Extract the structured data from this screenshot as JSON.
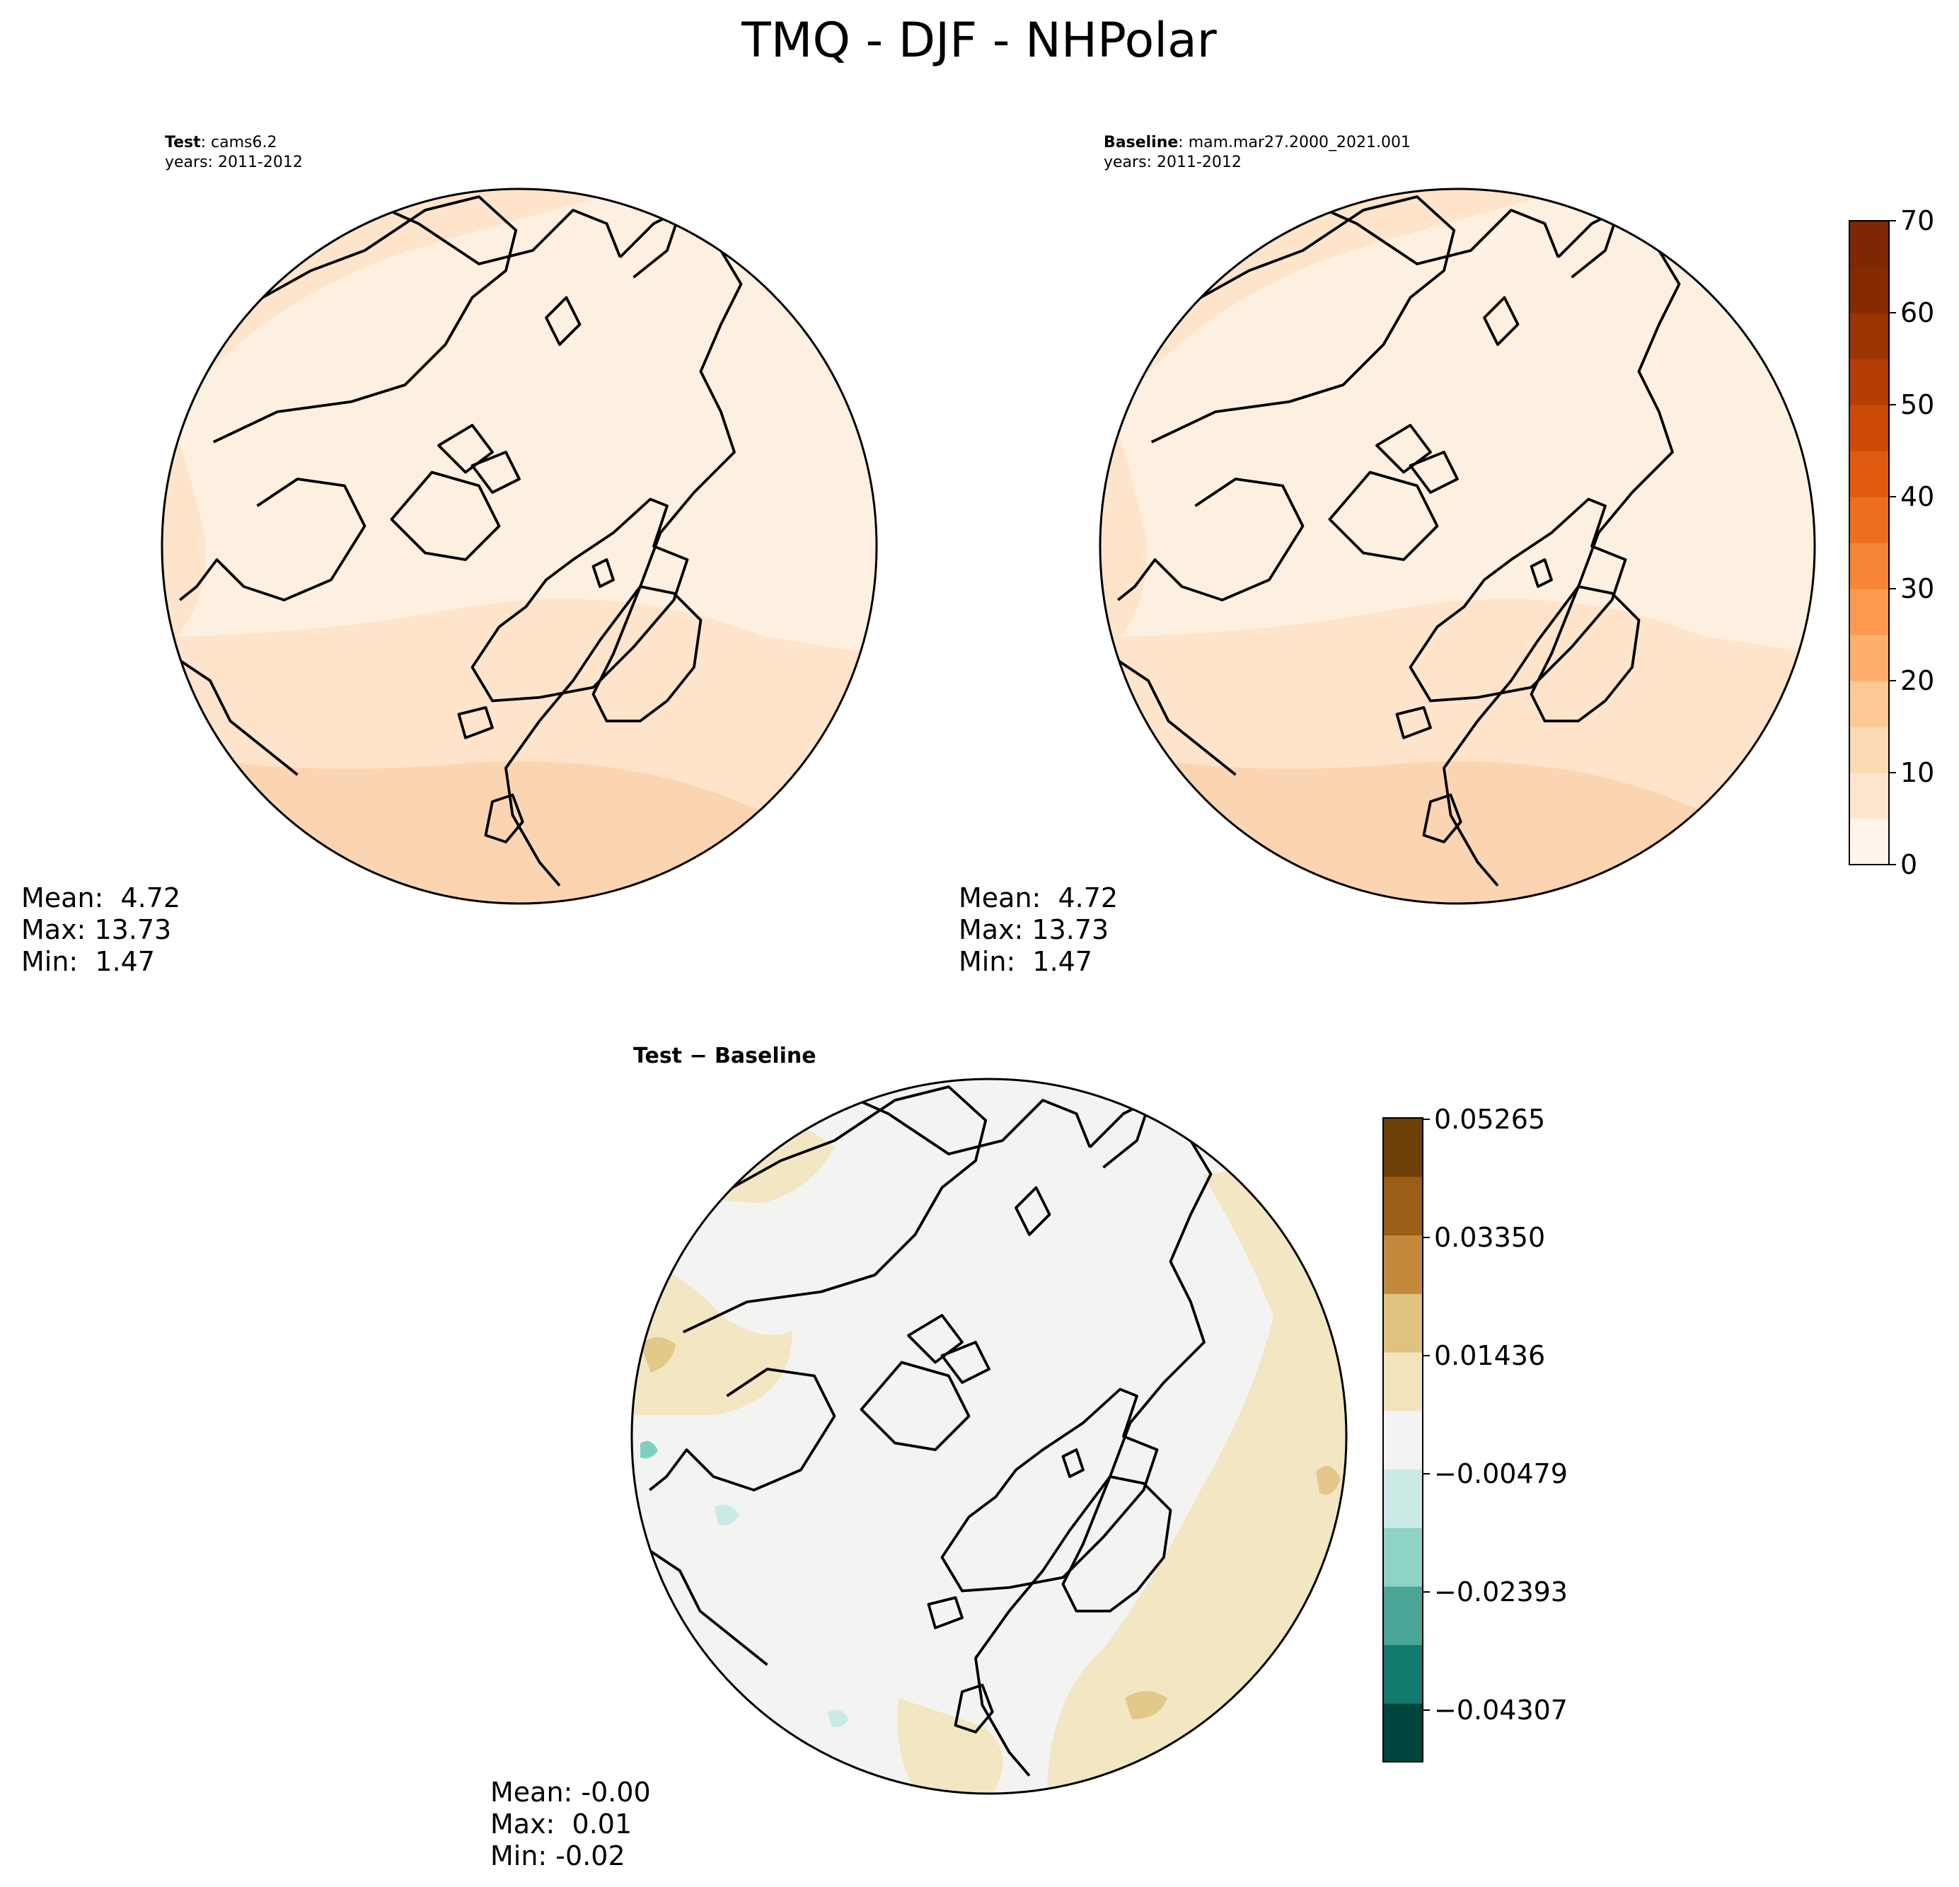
{
  "figure": {
    "title": "TMQ - DJF - NHPolar"
  },
  "panels": {
    "test": {
      "label_bold": "Test",
      "label_rest": ": cams6.2",
      "years": "years: 2011-2012",
      "stats": {
        "mean": "Mean:  4.72",
        "max": "Max: 13.73",
        "min": "Min:  1.47"
      }
    },
    "baseline": {
      "label_bold": "Baseline",
      "label_rest": ": mam.mar27.2000_2021.001",
      "years": "years: 2011-2012",
      "stats": {
        "mean": "Mean:  4.72",
        "max": "Max: 13.73",
        "min": "Min:  1.47"
      }
    },
    "diff": {
      "title": "Test − Baseline",
      "stats": {
        "mean": "Mean: -0.00",
        "max": "Max:  0.01",
        "min": "Min: -0.02"
      }
    }
  },
  "colorbars": {
    "main": {
      "ticks": [
        "0",
        "10",
        "20",
        "30",
        "40",
        "50",
        "60",
        "70"
      ],
      "colors": [
        "#fff5eb",
        "#fee6ce",
        "#fdd9b4",
        "#fdc895",
        "#fdae6b",
        "#fd9a4f",
        "#f68535",
        "#ec6f1f",
        "#e05a10",
        "#cc4a05",
        "#b33d03",
        "#9c3303",
        "#862a04",
        "#7f2704"
      ]
    },
    "diff": {
      "ticks": [
        "0.05265",
        "0.03350",
        "0.01436",
        "−0.00479",
        "−0.02393",
        "−0.04307"
      ],
      "colors": [
        "#01463e",
        "#127a6f",
        "#4aa597",
        "#8fd2c6",
        "#cbeae5",
        "#f2f3f2",
        "#f3e4bd",
        "#dfc27d",
        "#c38a3c",
        "#9c5d17",
        "#6f3f0a"
      ]
    }
  },
  "map_colors": {
    "land_outline": "#000000",
    "test_fill": [
      "#fef0e0",
      "#fde4cb",
      "#fbd5b1"
    ],
    "diff_fill": [
      "#f3f4f2",
      "#f3e6c3",
      "#e2c98a",
      "#7fcfc1"
    ]
  }
}
